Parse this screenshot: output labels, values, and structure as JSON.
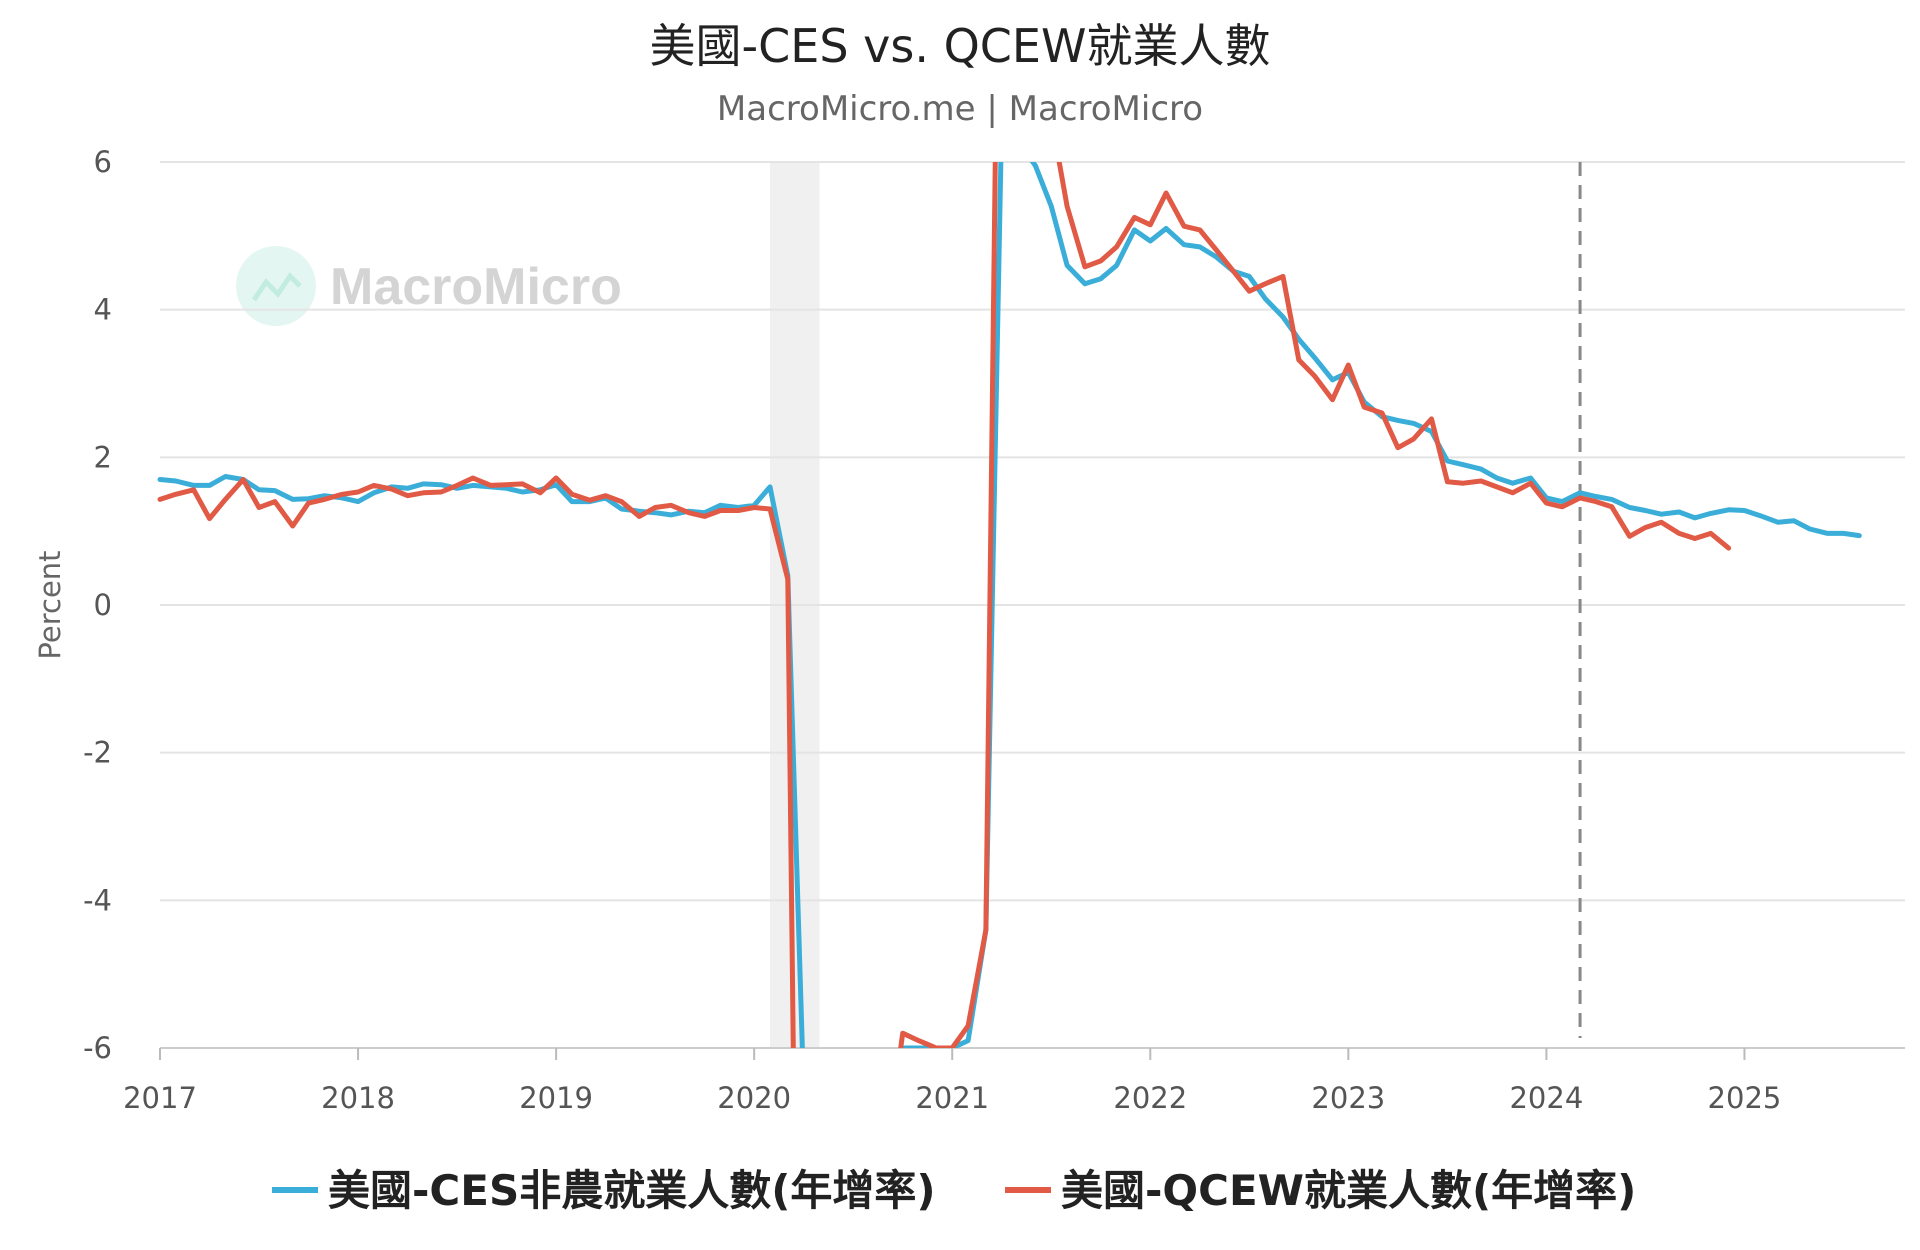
{
  "title": "美國-CES vs. QCEW就業人數",
  "subtitle": "MacroMicro.me | MacroMicro",
  "watermark": "MacroMicro",
  "chart_data": {
    "type": "line",
    "ylabel": "Percent",
    "ylim": [
      -6,
      6
    ],
    "yticks": [
      6,
      4,
      2,
      0,
      -2,
      -4,
      -6
    ],
    "ytick_labels": [
      "6",
      "4",
      "2",
      "0",
      "-2",
      "-4",
      "-6"
    ],
    "xlim": [
      2017.0,
      2025.75
    ],
    "xticks": [
      2017,
      2018,
      2019,
      2020,
      2021,
      2022,
      2023,
      2024,
      2025
    ],
    "xtick_labels": [
      "2017",
      "2018",
      "2019",
      "2020",
      "2021",
      "2022",
      "2023",
      "2024",
      "2025"
    ],
    "grid": true,
    "legend_position": "bottom",
    "recession_shading": [
      2020.08,
      2020.33
    ],
    "vertical_marker": 2024.17,
    "series": [
      {
        "name": "美國-CES非農就業人數(年增率)",
        "color": "#3aaed8",
        "points": [
          [
            2017.0,
            1.7
          ],
          [
            2017.08,
            1.68
          ],
          [
            2017.17,
            1.62
          ],
          [
            2017.25,
            1.62
          ],
          [
            2017.33,
            1.74
          ],
          [
            2017.42,
            1.7
          ],
          [
            2017.5,
            1.56
          ],
          [
            2017.58,
            1.55
          ],
          [
            2017.67,
            1.43
          ],
          [
            2017.75,
            1.44
          ],
          [
            2017.83,
            1.48
          ],
          [
            2017.92,
            1.45
          ],
          [
            2018.0,
            1.4
          ],
          [
            2018.08,
            1.52
          ],
          [
            2018.17,
            1.6
          ],
          [
            2018.25,
            1.58
          ],
          [
            2018.33,
            1.64
          ],
          [
            2018.42,
            1.63
          ],
          [
            2018.5,
            1.58
          ],
          [
            2018.58,
            1.62
          ],
          [
            2018.67,
            1.6
          ],
          [
            2018.75,
            1.58
          ],
          [
            2018.83,
            1.53
          ],
          [
            2018.92,
            1.56
          ],
          [
            2019.0,
            1.63
          ],
          [
            2019.08,
            1.4
          ],
          [
            2019.17,
            1.4
          ],
          [
            2019.25,
            1.45
          ],
          [
            2019.33,
            1.3
          ],
          [
            2019.42,
            1.27
          ],
          [
            2019.5,
            1.25
          ],
          [
            2019.58,
            1.22
          ],
          [
            2019.67,
            1.27
          ],
          [
            2019.75,
            1.25
          ],
          [
            2019.83,
            1.35
          ],
          [
            2019.92,
            1.32
          ],
          [
            2020.0,
            1.35
          ],
          [
            2020.08,
            1.6
          ],
          [
            2020.17,
            0.4
          ],
          [
            2020.25,
            -6.6
          ],
          [
            2020.67,
            -6.6
          ],
          [
            2020.75,
            -6.0
          ],
          [
            2020.83,
            -6.0
          ],
          [
            2020.92,
            -6.0
          ],
          [
            2021.0,
            -6.0
          ],
          [
            2021.08,
            -5.9
          ],
          [
            2021.17,
            -4.4
          ],
          [
            2021.25,
            6.6
          ],
          [
            2021.42,
            5.95
          ],
          [
            2021.5,
            5.4
          ],
          [
            2021.58,
            4.6
          ],
          [
            2021.67,
            4.35
          ],
          [
            2021.75,
            4.42
          ],
          [
            2021.83,
            4.6
          ],
          [
            2021.92,
            5.08
          ],
          [
            2022.0,
            4.93
          ],
          [
            2022.08,
            5.1
          ],
          [
            2022.17,
            4.88
          ],
          [
            2022.25,
            4.85
          ],
          [
            2022.33,
            4.72
          ],
          [
            2022.42,
            4.52
          ],
          [
            2022.5,
            4.45
          ],
          [
            2022.58,
            4.15
          ],
          [
            2022.67,
            3.9
          ],
          [
            2022.75,
            3.6
          ],
          [
            2022.83,
            3.35
          ],
          [
            2022.92,
            3.05
          ],
          [
            2023.0,
            3.15
          ],
          [
            2023.08,
            2.75
          ],
          [
            2023.17,
            2.55
          ],
          [
            2023.25,
            2.5
          ],
          [
            2023.33,
            2.46
          ],
          [
            2023.42,
            2.35
          ],
          [
            2023.5,
            1.95
          ],
          [
            2023.58,
            1.9
          ],
          [
            2023.67,
            1.84
          ],
          [
            2023.75,
            1.72
          ],
          [
            2023.83,
            1.65
          ],
          [
            2023.92,
            1.72
          ],
          [
            2024.0,
            1.45
          ],
          [
            2024.08,
            1.4
          ],
          [
            2024.17,
            1.52
          ],
          [
            2024.25,
            1.47
          ],
          [
            2024.33,
            1.43
          ],
          [
            2024.42,
            1.32
          ],
          [
            2024.5,
            1.28
          ],
          [
            2024.58,
            1.23
          ],
          [
            2024.67,
            1.26
          ],
          [
            2024.75,
            1.18
          ],
          [
            2024.83,
            1.24
          ],
          [
            2024.92,
            1.29
          ],
          [
            2025.0,
            1.28
          ],
          [
            2025.08,
            1.21
          ],
          [
            2025.17,
            1.12
          ],
          [
            2025.25,
            1.14
          ],
          [
            2025.33,
            1.03
          ],
          [
            2025.42,
            0.97
          ],
          [
            2025.5,
            0.97
          ],
          [
            2025.58,
            0.94
          ]
        ]
      },
      {
        "name": "美國-QCEW就業人數(年增率)",
        "color": "#e05a45",
        "points": [
          [
            2017.0,
            1.43
          ],
          [
            2017.08,
            1.5
          ],
          [
            2017.17,
            1.56
          ],
          [
            2017.25,
            1.17
          ],
          [
            2017.33,
            1.43
          ],
          [
            2017.42,
            1.7
          ],
          [
            2017.5,
            1.32
          ],
          [
            2017.58,
            1.4
          ],
          [
            2017.67,
            1.07
          ],
          [
            2017.75,
            1.38
          ],
          [
            2017.83,
            1.43
          ],
          [
            2017.92,
            1.5
          ],
          [
            2018.0,
            1.53
          ],
          [
            2018.08,
            1.62
          ],
          [
            2018.17,
            1.57
          ],
          [
            2018.25,
            1.48
          ],
          [
            2018.33,
            1.52
          ],
          [
            2018.42,
            1.53
          ],
          [
            2018.5,
            1.62
          ],
          [
            2018.58,
            1.72
          ],
          [
            2018.67,
            1.62
          ],
          [
            2018.75,
            1.63
          ],
          [
            2018.83,
            1.64
          ],
          [
            2018.92,
            1.52
          ],
          [
            2019.0,
            1.72
          ],
          [
            2019.08,
            1.5
          ],
          [
            2019.17,
            1.42
          ],
          [
            2019.25,
            1.48
          ],
          [
            2019.33,
            1.4
          ],
          [
            2019.42,
            1.2
          ],
          [
            2019.5,
            1.32
          ],
          [
            2019.58,
            1.35
          ],
          [
            2019.67,
            1.25
          ],
          [
            2019.75,
            1.2
          ],
          [
            2019.83,
            1.28
          ],
          [
            2019.92,
            1.28
          ],
          [
            2020.0,
            1.32
          ],
          [
            2020.08,
            1.3
          ],
          [
            2020.17,
            0.35
          ],
          [
            2020.2,
            -6.6
          ],
          [
            2020.71,
            -6.6
          ],
          [
            2020.75,
            -5.8
          ],
          [
            2020.83,
            -5.9
          ],
          [
            2020.92,
            -6.0
          ],
          [
            2021.0,
            -6.0
          ],
          [
            2021.08,
            -5.7
          ],
          [
            2021.17,
            -4.4
          ],
          [
            2021.22,
            6.6
          ],
          [
            2021.5,
            6.6
          ],
          [
            2021.58,
            5.4
          ],
          [
            2021.67,
            4.58
          ],
          [
            2021.75,
            4.66
          ],
          [
            2021.83,
            4.85
          ],
          [
            2021.92,
            5.25
          ],
          [
            2022.0,
            5.15
          ],
          [
            2022.08,
            5.58
          ],
          [
            2022.17,
            5.13
          ],
          [
            2022.25,
            5.08
          ],
          [
            2022.33,
            4.82
          ],
          [
            2022.42,
            4.52
          ],
          [
            2022.5,
            4.25
          ],
          [
            2022.58,
            4.35
          ],
          [
            2022.67,
            4.45
          ],
          [
            2022.75,
            3.32
          ],
          [
            2022.83,
            3.1
          ],
          [
            2022.92,
            2.78
          ],
          [
            2023.0,
            3.25
          ],
          [
            2023.08,
            2.68
          ],
          [
            2023.17,
            2.6
          ],
          [
            2023.25,
            2.13
          ],
          [
            2023.33,
            2.25
          ],
          [
            2023.42,
            2.52
          ],
          [
            2023.5,
            1.67
          ],
          [
            2023.58,
            1.65
          ],
          [
            2023.67,
            1.68
          ],
          [
            2023.75,
            1.6
          ],
          [
            2023.83,
            1.52
          ],
          [
            2023.92,
            1.65
          ],
          [
            2024.0,
            1.38
          ],
          [
            2024.08,
            1.33
          ],
          [
            2024.17,
            1.45
          ],
          [
            2024.25,
            1.4
          ],
          [
            2024.33,
            1.33
          ],
          [
            2024.42,
            0.93
          ],
          [
            2024.5,
            1.05
          ],
          [
            2024.58,
            1.12
          ],
          [
            2024.67,
            0.97
          ],
          [
            2024.75,
            0.9
          ],
          [
            2024.83,
            0.97
          ],
          [
            2024.92,
            0.77
          ]
        ]
      }
    ]
  }
}
